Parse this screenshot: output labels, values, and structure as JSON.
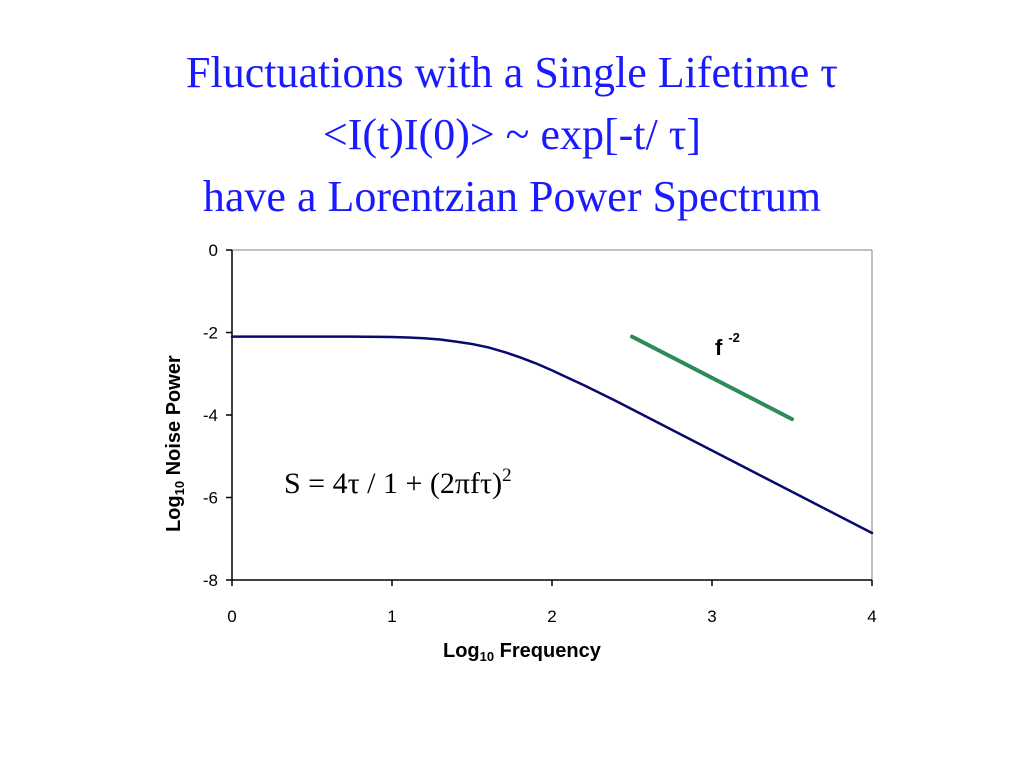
{
  "slide": {
    "title_line1": "Fluctuations with a Single Lifetime τ",
    "title_line2": "<I(t)I(0)> ~ exp[-t/ τ]",
    "title_line3": "have a Lorentzian Power Spectrum",
    "title_color": "#1a1aff"
  },
  "chart_data": {
    "type": "line",
    "xlabel_main": "Log",
    "xlabel_sub": "10",
    "xlabel_rest": " Frequency",
    "ylabel_main": "Log",
    "ylabel_sub": "10",
    "ylabel_rest": " Noise Power",
    "xlim": [
      0,
      4
    ],
    "ylim": [
      -8,
      0
    ],
    "x_ticks": [
      "0",
      "1",
      "2",
      "3",
      "4"
    ],
    "y_ticks": [
      "0",
      "-2",
      "-4",
      "-6",
      "-8"
    ],
    "grid": false,
    "series": [
      {
        "color": "#0a0a6e",
        "x": [
          0,
          0.25,
          0.5,
          0.75,
          1.0,
          1.1,
          1.2,
          1.3,
          1.4,
          1.5,
          1.6,
          1.7,
          1.8,
          1.9,
          2.0,
          2.2,
          2.4,
          2.6,
          2.8,
          3.0,
          3.2,
          3.4,
          3.6,
          3.8,
          4.0
        ],
        "y": [
          -2.1,
          -2.1,
          -2.1,
          -2.1,
          -2.11,
          -2.12,
          -2.14,
          -2.17,
          -2.22,
          -2.28,
          -2.36,
          -2.47,
          -2.6,
          -2.75,
          -2.92,
          -3.28,
          -3.66,
          -4.06,
          -4.46,
          -4.86,
          -5.26,
          -5.66,
          -6.06,
          -6.46,
          -6.86
        ]
      },
      {
        "color": "#2e8b57",
        "x": [
          2.5,
          3.5
        ],
        "y": [
          -2.1,
          -4.1
        ]
      }
    ],
    "annotations": {
      "slope_label": "f",
      "slope_exponent": "-2",
      "formula_main": "S = 4τ / 1 + (2πfτ)",
      "formula_exponent": "2"
    }
  }
}
